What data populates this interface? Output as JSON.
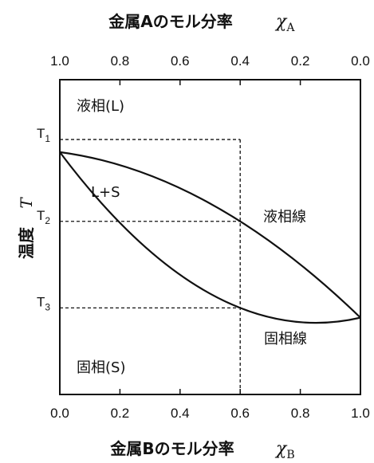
{
  "top_axis": {
    "title": "金属Aのモル分率",
    "symbol": "χ",
    "subscript": "A",
    "ticks": [
      "1.0",
      "0.8",
      "0.6",
      "0.4",
      "0.2",
      "0.0"
    ]
  },
  "bottom_axis": {
    "title": "金属Bのモル分率",
    "symbol": "χ",
    "subscript": "B",
    "ticks": [
      "0.0",
      "0.2",
      "0.4",
      "0.6",
      "0.8",
      "1.0"
    ]
  },
  "y_axis": {
    "title": "温度",
    "symbol": "T",
    "levels": [
      {
        "label": "T",
        "sub": "1"
      },
      {
        "label": "T",
        "sub": "2"
      },
      {
        "label": "T",
        "sub": "3"
      }
    ]
  },
  "regions": {
    "liquid": "液相(L)",
    "two_phase": "L+S",
    "solid": "固相(S)",
    "liquidus": "液相線",
    "solidus": "固相線"
  },
  "chart_data": {
    "type": "phase-diagram",
    "x_range": [
      0,
      1
    ],
    "guide_x": 0.6,
    "melting_point_A": 0.23,
    "melting_point_B": 0.756,
    "T1": 0.19,
    "T2": 0.45,
    "T3": 0.725,
    "liquidus": [
      [
        0,
        0.23
      ],
      [
        0.6,
        0.45
      ],
      [
        1,
        0.756
      ]
    ],
    "solidus": [
      [
        0,
        0.23
      ],
      [
        0.6,
        0.725
      ],
      [
        1,
        0.756
      ]
    ]
  }
}
